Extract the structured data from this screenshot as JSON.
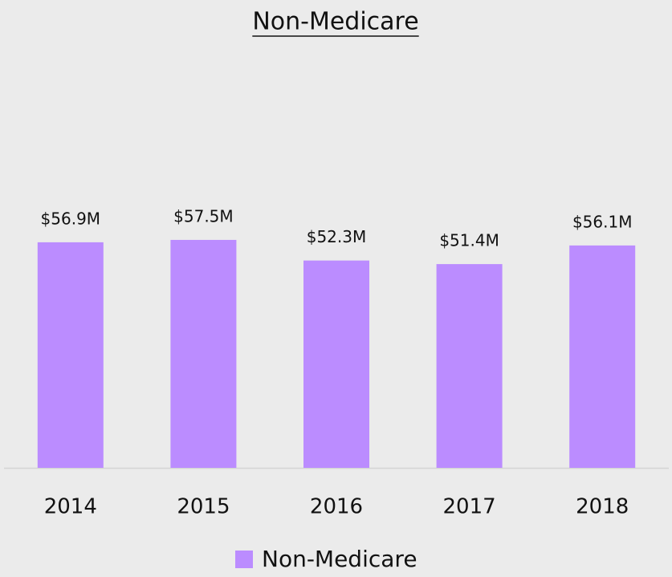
{
  "chart_data": {
    "type": "bar",
    "title": "Non-Medicare",
    "categories": [
      "2014",
      "2015",
      "2016",
      "2017",
      "2018"
    ],
    "series": [
      {
        "name": "Non-Medicare",
        "color": "#bb8cff",
        "values": [
          56.9,
          57.5,
          52.3,
          51.4,
          56.1
        ],
        "value_labels": [
          "$56.9M",
          "$57.5M",
          "$52.3M",
          "$51.4M",
          "$56.1M"
        ]
      }
    ],
    "ylim": [
      0,
      100
    ]
  }
}
